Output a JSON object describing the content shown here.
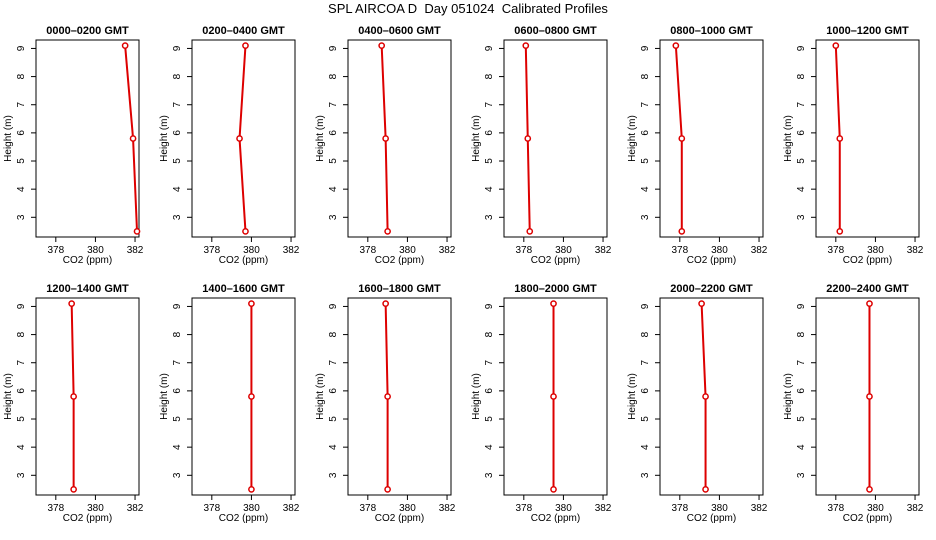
{
  "title": "SPL AIRCOA D  Day 051024  Calibrated Profiles",
  "chart_data": [
    {
      "type": "line",
      "title": "0000–0200 GMT",
      "xlabel": "CO2 (ppm)",
      "ylabel": "Height (m)",
      "xlim": [
        377,
        382.2
      ],
      "ylim": [
        2.3,
        9.3
      ],
      "xticks": [
        "378",
        "380",
        "382"
      ],
      "yticks": [
        "3",
        "4",
        "5",
        "6",
        "7",
        "8",
        "9"
      ],
      "grid": false,
      "heights": [
        9.1,
        5.8,
        2.5
      ],
      "values": [
        381.5,
        381.9,
        382.1
      ],
      "line_color": "#dd0000"
    },
    {
      "type": "line",
      "title": "0200–0400 GMT",
      "xlabel": "CO2 (ppm)",
      "ylabel": "Height (m)",
      "xlim": [
        377,
        382.2
      ],
      "ylim": [
        2.3,
        9.3
      ],
      "xticks": [
        "378",
        "380",
        "382"
      ],
      "yticks": [
        "3",
        "4",
        "5",
        "6",
        "7",
        "8",
        "9"
      ],
      "grid": false,
      "heights": [
        9.1,
        5.8,
        2.5
      ],
      "values": [
        379.7,
        379.4,
        379.7
      ],
      "line_color": "#dd0000"
    },
    {
      "type": "line",
      "title": "0400–0600 GMT",
      "xlabel": "CO2 (ppm)",
      "ylabel": "Height (m)",
      "xlim": [
        377,
        382.2
      ],
      "ylim": [
        2.3,
        9.3
      ],
      "xticks": [
        "378",
        "380",
        "382"
      ],
      "yticks": [
        "3",
        "4",
        "5",
        "6",
        "7",
        "8",
        "9"
      ],
      "grid": false,
      "heights": [
        9.1,
        5.8,
        2.5
      ],
      "values": [
        378.7,
        378.9,
        379.0
      ],
      "line_color": "#dd0000"
    },
    {
      "type": "line",
      "title": "0600–0800 GMT",
      "xlabel": "CO2 (ppm)",
      "ylabel": "Height (m)",
      "xlim": [
        377,
        382.2
      ],
      "ylim": [
        2.3,
        9.3
      ],
      "xticks": [
        "378",
        "380",
        "382"
      ],
      "yticks": [
        "3",
        "4",
        "5",
        "6",
        "7",
        "8",
        "9"
      ],
      "grid": false,
      "heights": [
        9.1,
        5.8,
        2.5
      ],
      "values": [
        378.1,
        378.2,
        378.3
      ],
      "line_color": "#dd0000"
    },
    {
      "type": "line",
      "title": "0800–1000 GMT",
      "xlabel": "CO2 (ppm)",
      "ylabel": "Height (m)",
      "xlim": [
        377,
        382.2
      ],
      "ylim": [
        2.3,
        9.3
      ],
      "xticks": [
        "378",
        "380",
        "382"
      ],
      "yticks": [
        "3",
        "4",
        "5",
        "6",
        "7",
        "8",
        "9"
      ],
      "grid": false,
      "heights": [
        9.1,
        5.8,
        2.5
      ],
      "values": [
        377.8,
        378.1,
        378.1
      ],
      "line_color": "#dd0000"
    },
    {
      "type": "line",
      "title": "1000–1200 GMT",
      "xlabel": "CO2 (ppm)",
      "ylabel": "Height (m)",
      "xlim": [
        377,
        382.2
      ],
      "ylim": [
        2.3,
        9.3
      ],
      "xticks": [
        "378",
        "380",
        "382"
      ],
      "yticks": [
        "3",
        "4",
        "5",
        "6",
        "7",
        "8",
        "9"
      ],
      "grid": false,
      "heights": [
        9.1,
        5.8,
        2.5
      ],
      "values": [
        378.0,
        378.2,
        378.2
      ],
      "line_color": "#dd0000"
    },
    {
      "type": "line",
      "title": "1200–1400 GMT",
      "xlabel": "CO2 (ppm)",
      "ylabel": "Height (m)",
      "xlim": [
        377,
        382.2
      ],
      "ylim": [
        2.3,
        9.3
      ],
      "xticks": [
        "378",
        "380",
        "382"
      ],
      "yticks": [
        "3",
        "4",
        "5",
        "6",
        "7",
        "8",
        "9"
      ],
      "grid": false,
      "heights": [
        9.1,
        5.8,
        2.5
      ],
      "values": [
        378.8,
        378.9,
        378.9
      ],
      "line_color": "#dd0000"
    },
    {
      "type": "line",
      "title": "1400–1600 GMT",
      "xlabel": "CO2 (ppm)",
      "ylabel": "Height (m)",
      "xlim": [
        377,
        382.2
      ],
      "ylim": [
        2.3,
        9.3
      ],
      "xticks": [
        "378",
        "380",
        "382"
      ],
      "yticks": [
        "3",
        "4",
        "5",
        "6",
        "7",
        "8",
        "9"
      ],
      "grid": false,
      "heights": [
        9.1,
        5.8,
        2.5
      ],
      "values": [
        380.0,
        380.0,
        380.0
      ],
      "line_color": "#dd0000"
    },
    {
      "type": "line",
      "title": "1600–1800 GMT",
      "xlabel": "CO2 (ppm)",
      "ylabel": "Height (m)",
      "xlim": [
        377,
        382.2
      ],
      "ylim": [
        2.3,
        9.3
      ],
      "xticks": [
        "378",
        "380",
        "382"
      ],
      "yticks": [
        "3",
        "4",
        "5",
        "6",
        "7",
        "8",
        "9"
      ],
      "grid": false,
      "heights": [
        9.1,
        5.8,
        2.5
      ],
      "values": [
        378.9,
        379.0,
        379.0
      ],
      "line_color": "#dd0000"
    },
    {
      "type": "line",
      "title": "1800–2000 GMT",
      "xlabel": "CO2 (ppm)",
      "ylabel": "Height (m)",
      "xlim": [
        377,
        382.2
      ],
      "ylim": [
        2.3,
        9.3
      ],
      "xticks": [
        "378",
        "380",
        "382"
      ],
      "yticks": [
        "3",
        "4",
        "5",
        "6",
        "7",
        "8",
        "9"
      ],
      "grid": false,
      "heights": [
        9.1,
        5.8,
        2.5
      ],
      "values": [
        379.5,
        379.5,
        379.5
      ],
      "line_color": "#dd0000"
    },
    {
      "type": "line",
      "title": "2000–2200 GMT",
      "xlabel": "CO2 (ppm)",
      "ylabel": "Height (m)",
      "xlim": [
        377,
        382.2
      ],
      "ylim": [
        2.3,
        9.3
      ],
      "xticks": [
        "378",
        "380",
        "382"
      ],
      "yticks": [
        "3",
        "4",
        "5",
        "6",
        "7",
        "8",
        "9"
      ],
      "grid": false,
      "heights": [
        9.1,
        5.8,
        2.5
      ],
      "values": [
        379.1,
        379.3,
        379.3
      ],
      "line_color": "#dd0000"
    },
    {
      "type": "line",
      "title": "2200–2400 GMT",
      "xlabel": "CO2 (ppm)",
      "ylabel": "Height (m)",
      "xlim": [
        377,
        382.2
      ],
      "ylim": [
        2.3,
        9.3
      ],
      "xticks": [
        "378",
        "380",
        "382"
      ],
      "yticks": [
        "3",
        "4",
        "5",
        "6",
        "7",
        "8",
        "9"
      ],
      "grid": false,
      "heights": [
        9.1,
        5.8,
        2.5
      ],
      "values": [
        379.7,
        379.7,
        379.7
      ],
      "line_color": "#dd0000"
    }
  ]
}
